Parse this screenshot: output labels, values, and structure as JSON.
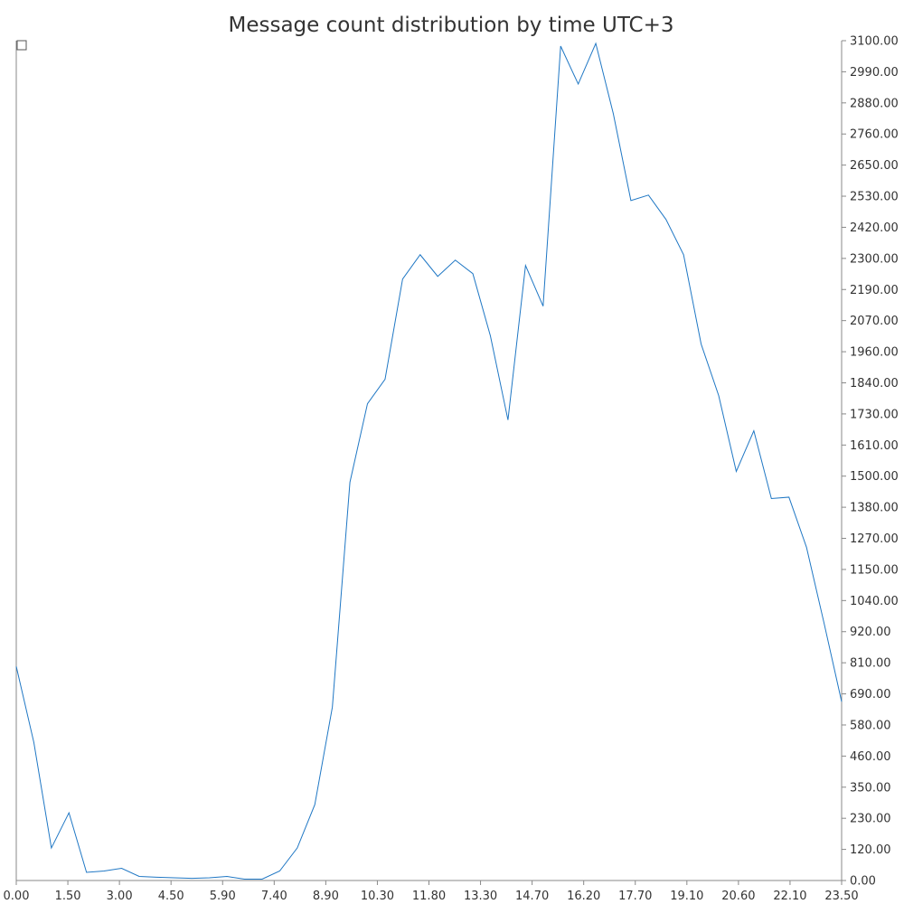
{
  "chart_data": {
    "type": "line",
    "title": "Message count distribution by time UTC+3",
    "xlabel": "",
    "ylabel": "",
    "xlim": [
      0,
      23.5
    ],
    "ylim": [
      0,
      3100
    ],
    "grid": false,
    "legend": "top-left",
    "x_tick_labels": [
      "0.00",
      "1.50",
      "3.00",
      "4.50",
      "5.90",
      "7.40",
      "8.90",
      "10.30",
      "11.80",
      "13.30",
      "14.70",
      "16.20",
      "17.70",
      "19.10",
      "20.60",
      "22.10",
      "23.50"
    ],
    "y_tick_labels": [
      "0.00",
      "120.00",
      "230.00",
      "350.00",
      "460.00",
      "580.00",
      "690.00",
      "810.00",
      "920.00",
      "1040.00",
      "1150.00",
      "1270.00",
      "1380.00",
      "1500.00",
      "1610.00",
      "1730.00",
      "1840.00",
      "1960.00",
      "2070.00",
      "2190.00",
      "2300.00",
      "2420.00",
      "2530.00",
      "2650.00",
      "2760.00",
      "2880.00",
      "2990.00",
      "3100.00"
    ],
    "series": [
      {
        "color": "#1f77c4",
        "x": [
          0,
          0.5,
          1,
          1.5,
          2,
          2.5,
          3,
          3.5,
          4,
          4.5,
          5,
          5.5,
          6,
          6.5,
          7,
          7.5,
          8,
          8.5,
          9,
          9.5,
          10,
          10.5,
          11,
          11.5,
          12,
          12.5,
          13,
          13.5,
          14,
          14.5,
          15,
          15.5,
          16,
          16.5,
          17,
          17.5,
          18,
          18.5,
          19,
          19.5,
          20,
          20.5,
          21,
          21.5,
          22,
          22.5,
          23,
          23.5
        ],
        "values": [
          790,
          510,
          120,
          250,
          30,
          35,
          45,
          15,
          12,
          10,
          8,
          10,
          15,
          5,
          5,
          35,
          120,
          280,
          640,
          1470,
          1760,
          1850,
          2220,
          2310,
          2230,
          2290,
          2240,
          2010,
          1700,
          2270,
          2120,
          3080,
          2940,
          3090,
          2830,
          2510,
          2530,
          2440,
          2310,
          1980,
          1790,
          1510,
          1660,
          1410,
          1415,
          1230,
          950,
          660
        ]
      }
    ]
  }
}
